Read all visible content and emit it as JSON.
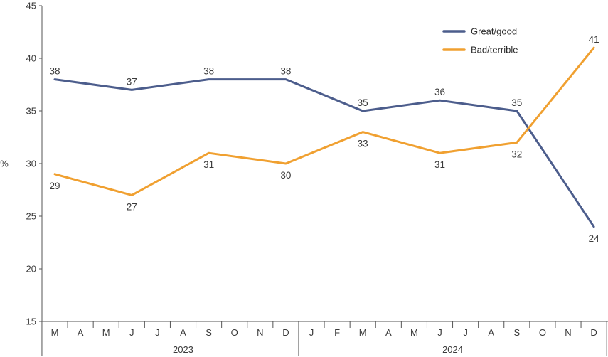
{
  "chart_data": {
    "type": "line",
    "ylabel": "%",
    "ylim": [
      15,
      45
    ],
    "yticks": [
      15,
      20,
      25,
      30,
      35,
      40,
      45
    ],
    "grid": false,
    "legend_position": "top-right",
    "x": [
      "M",
      "A",
      "M",
      "J",
      "J",
      "A",
      "S",
      "O",
      "N",
      "D",
      "J",
      "F",
      "M",
      "A",
      "M",
      "J",
      "J",
      "A",
      "S",
      "O",
      "N",
      "D"
    ],
    "years": [
      {
        "label": "2023",
        "center_month": 5
      },
      {
        "label": "2024",
        "center_month": 15.5
      }
    ],
    "series": [
      {
        "name": "Great/good",
        "color": "#4c5d8c",
        "points": [
          {
            "x": 0,
            "value": 38,
            "label_pos": "above"
          },
          {
            "x": 3,
            "value": 37,
            "label_pos": "above"
          },
          {
            "x": 6,
            "value": 38,
            "label_pos": "above"
          },
          {
            "x": 9,
            "value": 38,
            "label_pos": "above"
          },
          {
            "x": 12,
            "value": 35,
            "label_pos": "above"
          },
          {
            "x": 15,
            "value": 36,
            "label_pos": "above"
          },
          {
            "x": 18,
            "value": 35,
            "label_pos": "above"
          },
          {
            "x": 21,
            "value": 24,
            "label_pos": "below"
          }
        ]
      },
      {
        "name": "Bad/terrible",
        "color": "#f0a030",
        "points": [
          {
            "x": 0,
            "value": 29,
            "label_pos": "below"
          },
          {
            "x": 3,
            "value": 27,
            "label_pos": "below"
          },
          {
            "x": 6,
            "value": 31,
            "label_pos": "below"
          },
          {
            "x": 9,
            "value": 30,
            "label_pos": "below"
          },
          {
            "x": 12,
            "value": 33,
            "label_pos": "below"
          },
          {
            "x": 15,
            "value": 31,
            "label_pos": "below"
          },
          {
            "x": 18,
            "value": 32,
            "label_pos": "below"
          },
          {
            "x": 21,
            "value": 41,
            "label_pos": "above"
          }
        ]
      }
    ]
  }
}
